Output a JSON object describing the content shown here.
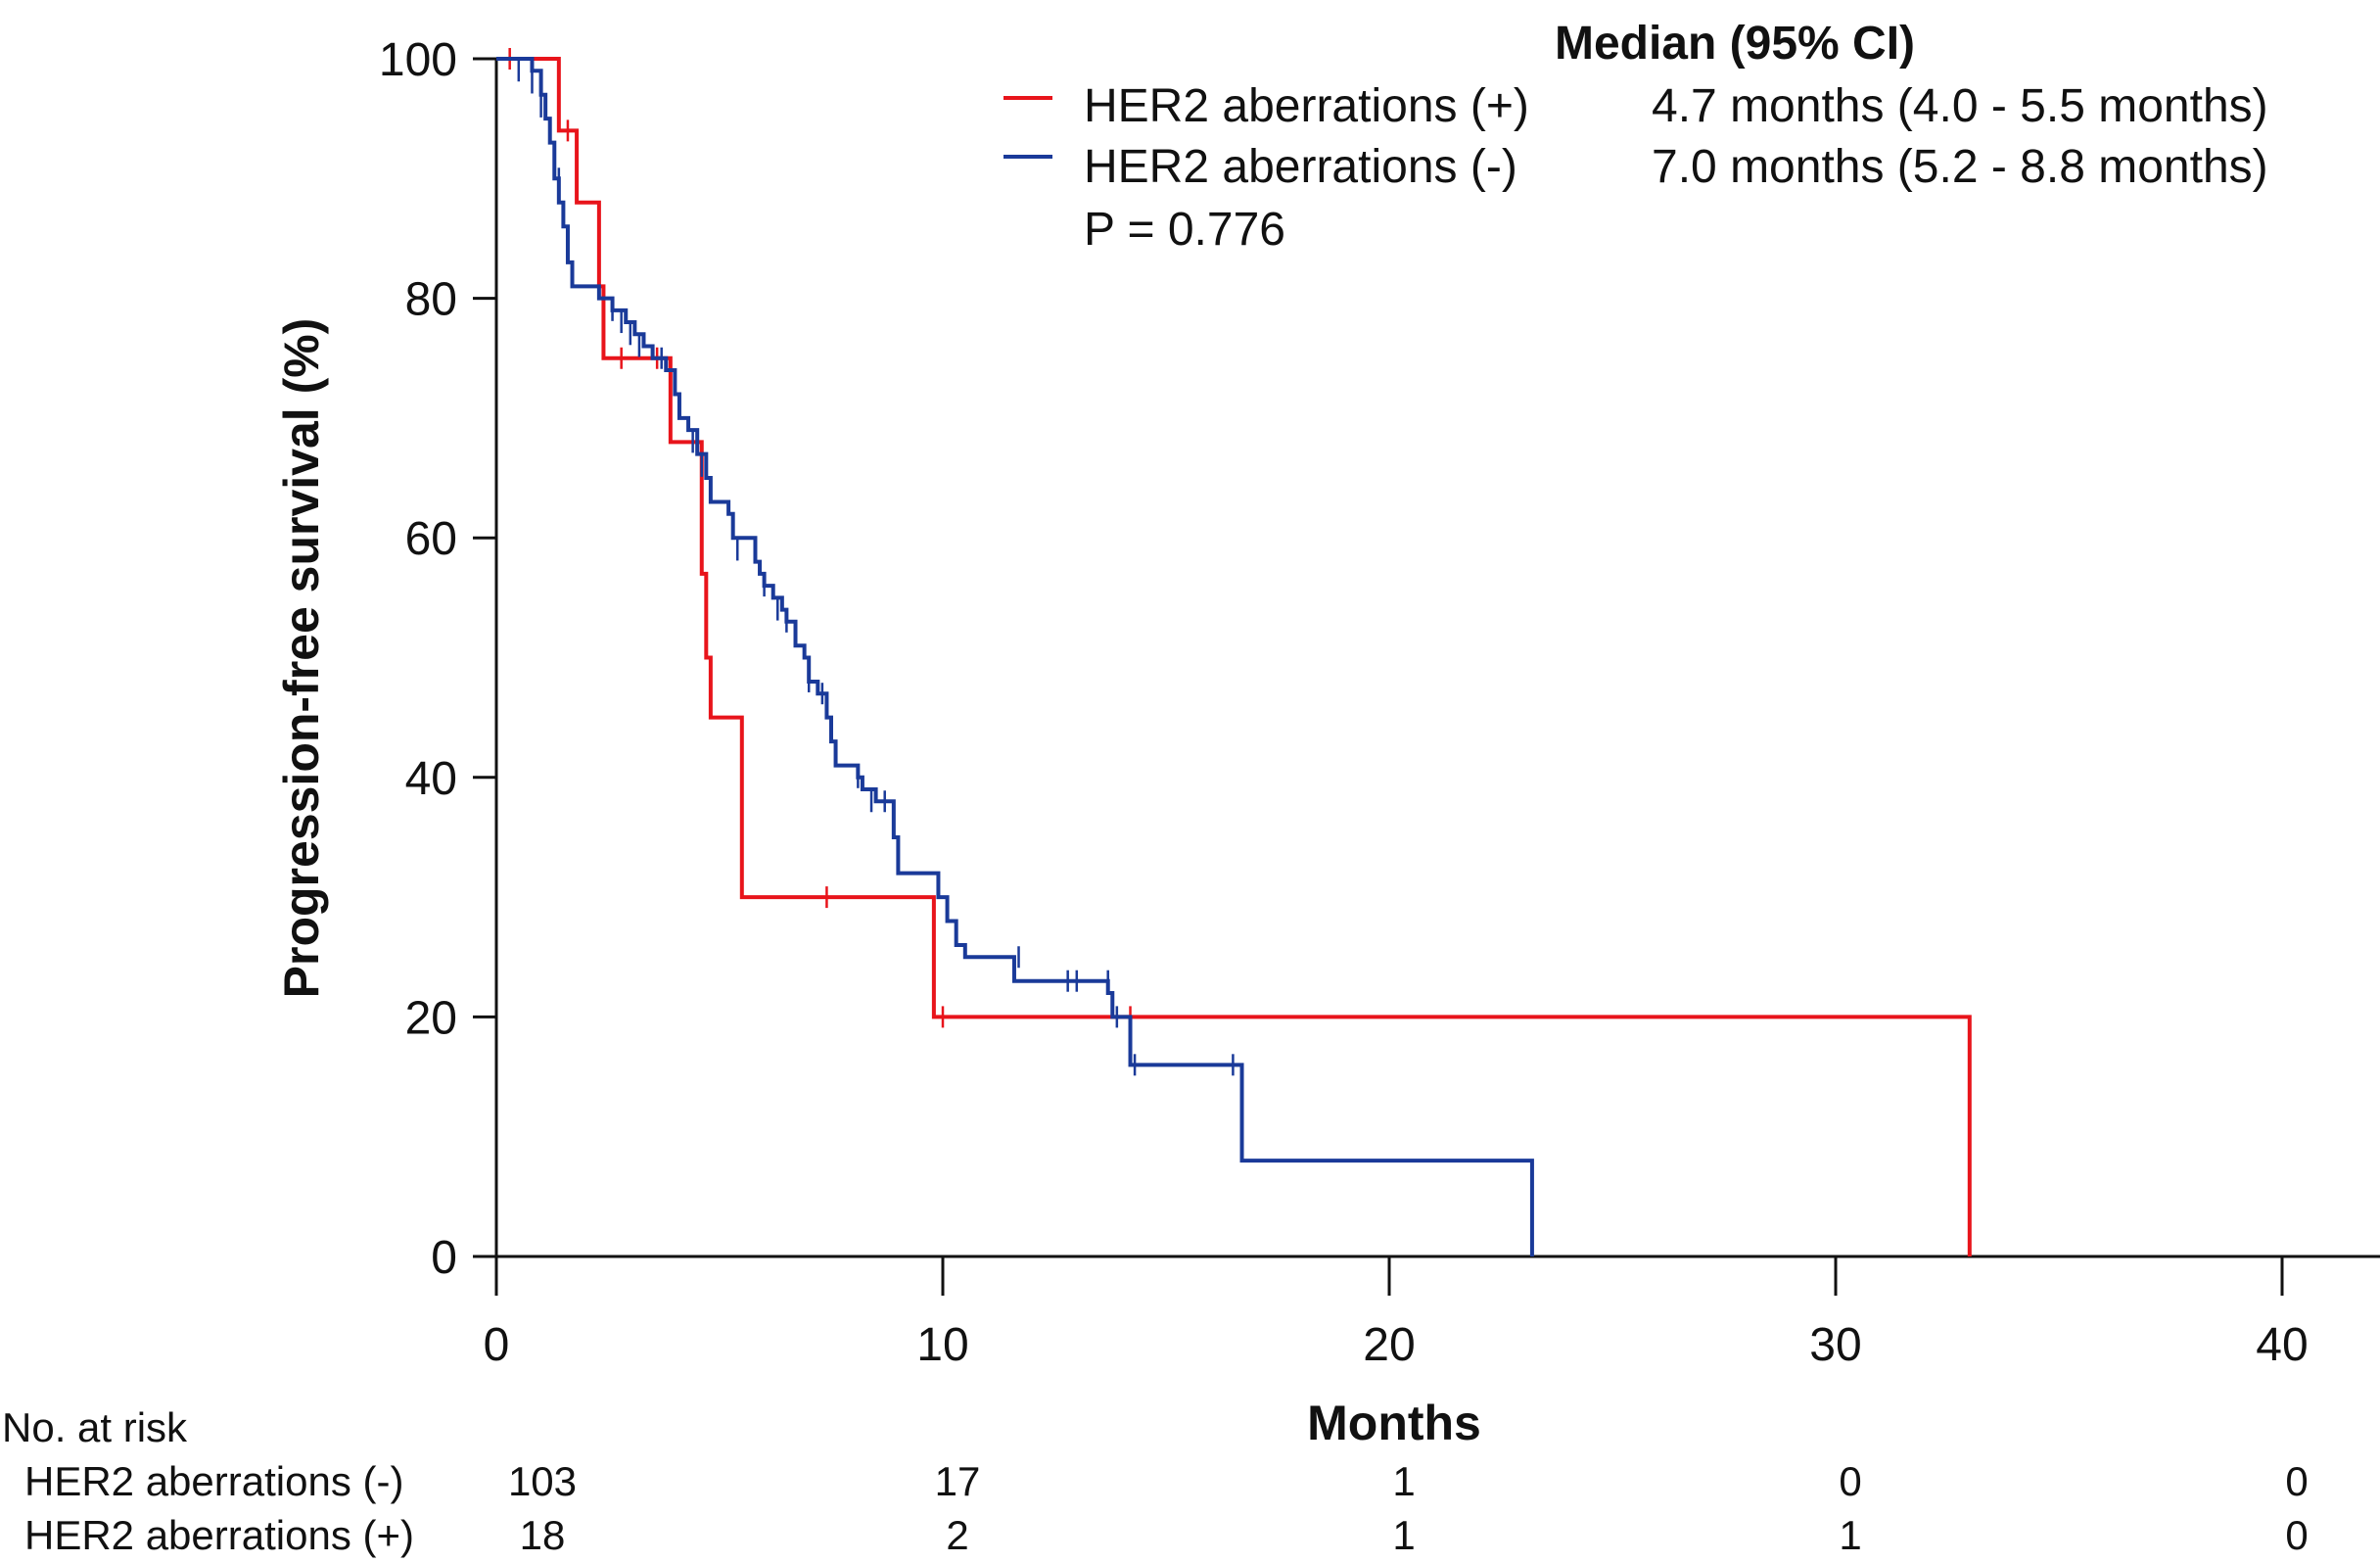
{
  "chart_data": {
    "type": "line",
    "subtype": "kaplan-meier",
    "xlabel": "Months",
    "ylabel": "Progression-free survival (%)",
    "xlim": [
      0,
      42
    ],
    "ylim": [
      0,
      100
    ],
    "xticks": [
      0,
      10,
      20,
      30,
      40
    ],
    "yticks": [
      0,
      20,
      40,
      60,
      80,
      100
    ],
    "legend": {
      "header": "Median (95% CI)",
      "p_value": "P = 0.776",
      "placement": "top-right"
    },
    "series": [
      {
        "name": "HER2 aberrations (+)",
        "color": "#e8141b",
        "median": "4.7 months (4.0 - 5.5 months)",
        "steps": [
          [
            0,
            100
          ],
          [
            1.4,
            94
          ],
          [
            1.8,
            88
          ],
          [
            2.3,
            81
          ],
          [
            2.4,
            75
          ],
          [
            3.9,
            68
          ],
          [
            4.6,
            57
          ],
          [
            4.7,
            50
          ],
          [
            4.8,
            45
          ],
          [
            5.5,
            30
          ],
          [
            9.8,
            20
          ],
          [
            33.0,
            0
          ]
        ],
        "censored": [
          [
            0.3,
            100
          ],
          [
            1.6,
            94
          ],
          [
            2.8,
            75
          ],
          [
            3.6,
            75
          ],
          [
            7.4,
            30
          ],
          [
            10.0,
            20
          ],
          [
            14.2,
            20
          ]
        ],
        "end_x": 33.0
      },
      {
        "name": "HER2 aberrations (-)",
        "color": "#1a3a99",
        "median": "7.0 months (5.2 - 8.8 months)",
        "steps": [
          [
            0,
            100
          ],
          [
            0.8,
            99
          ],
          [
            1.0,
            97
          ],
          [
            1.1,
            95
          ],
          [
            1.2,
            93
          ],
          [
            1.3,
            90
          ],
          [
            1.4,
            88
          ],
          [
            1.5,
            86
          ],
          [
            1.6,
            83
          ],
          [
            1.7,
            81
          ],
          [
            2.3,
            80
          ],
          [
            2.6,
            79
          ],
          [
            2.9,
            78
          ],
          [
            3.1,
            77
          ],
          [
            3.3,
            76
          ],
          [
            3.5,
            75
          ],
          [
            3.8,
            74
          ],
          [
            4.0,
            72
          ],
          [
            4.1,
            70
          ],
          [
            4.3,
            69
          ],
          [
            4.5,
            67
          ],
          [
            4.7,
            65
          ],
          [
            4.8,
            63
          ],
          [
            5.2,
            62
          ],
          [
            5.3,
            60
          ],
          [
            5.8,
            58
          ],
          [
            5.9,
            57
          ],
          [
            6.0,
            56
          ],
          [
            6.2,
            55
          ],
          [
            6.4,
            54
          ],
          [
            6.5,
            53
          ],
          [
            6.7,
            51
          ],
          [
            6.9,
            50
          ],
          [
            7.0,
            48
          ],
          [
            7.2,
            47
          ],
          [
            7.4,
            45
          ],
          [
            7.5,
            43
          ],
          [
            7.6,
            41
          ],
          [
            8.1,
            40
          ],
          [
            8.2,
            39
          ],
          [
            8.5,
            38
          ],
          [
            8.9,
            35
          ],
          [
            9.0,
            32
          ],
          [
            9.9,
            30
          ],
          [
            10.1,
            28
          ],
          [
            10.3,
            26
          ],
          [
            10.5,
            25
          ],
          [
            11.6,
            23
          ],
          [
            13.7,
            22
          ],
          [
            13.8,
            20
          ],
          [
            14.2,
            16
          ],
          [
            16.7,
            8
          ],
          [
            23.2,
            0
          ]
        ],
        "censored": [
          [
            0.5,
            99
          ],
          [
            0.8,
            98
          ],
          [
            1.0,
            96
          ],
          [
            1.4,
            90
          ],
          [
            1.5,
            87
          ],
          [
            2.6,
            79
          ],
          [
            2.8,
            78
          ],
          [
            3.0,
            77
          ],
          [
            3.2,
            76
          ],
          [
            3.7,
            75
          ],
          [
            4.0,
            73
          ],
          [
            4.4,
            68
          ],
          [
            4.6,
            66
          ],
          [
            5.4,
            59
          ],
          [
            6.0,
            56
          ],
          [
            6.3,
            54
          ],
          [
            6.5,
            53
          ],
          [
            7.0,
            48
          ],
          [
            7.3,
            47
          ],
          [
            8.1,
            40
          ],
          [
            8.4,
            38
          ],
          [
            8.7,
            38
          ],
          [
            11.7,
            25
          ],
          [
            12.8,
            23
          ],
          [
            13.0,
            23
          ],
          [
            13.7,
            23
          ],
          [
            13.9,
            20
          ],
          [
            14.3,
            16
          ],
          [
            16.5,
            16
          ]
        ],
        "end_x": 23.2
      }
    ]
  },
  "risk_table": {
    "title": "No. at risk",
    "times": [
      0,
      10,
      20,
      30,
      40
    ],
    "rows": [
      {
        "label": "HER2 aberrations (-)",
        "counts": [
          "103",
          "17",
          "1",
          "0",
          "0"
        ]
      },
      {
        "label": "HER2 aberrations (+)",
        "counts": [
          "18",
          "2",
          "1",
          "1",
          "0"
        ]
      }
    ]
  }
}
